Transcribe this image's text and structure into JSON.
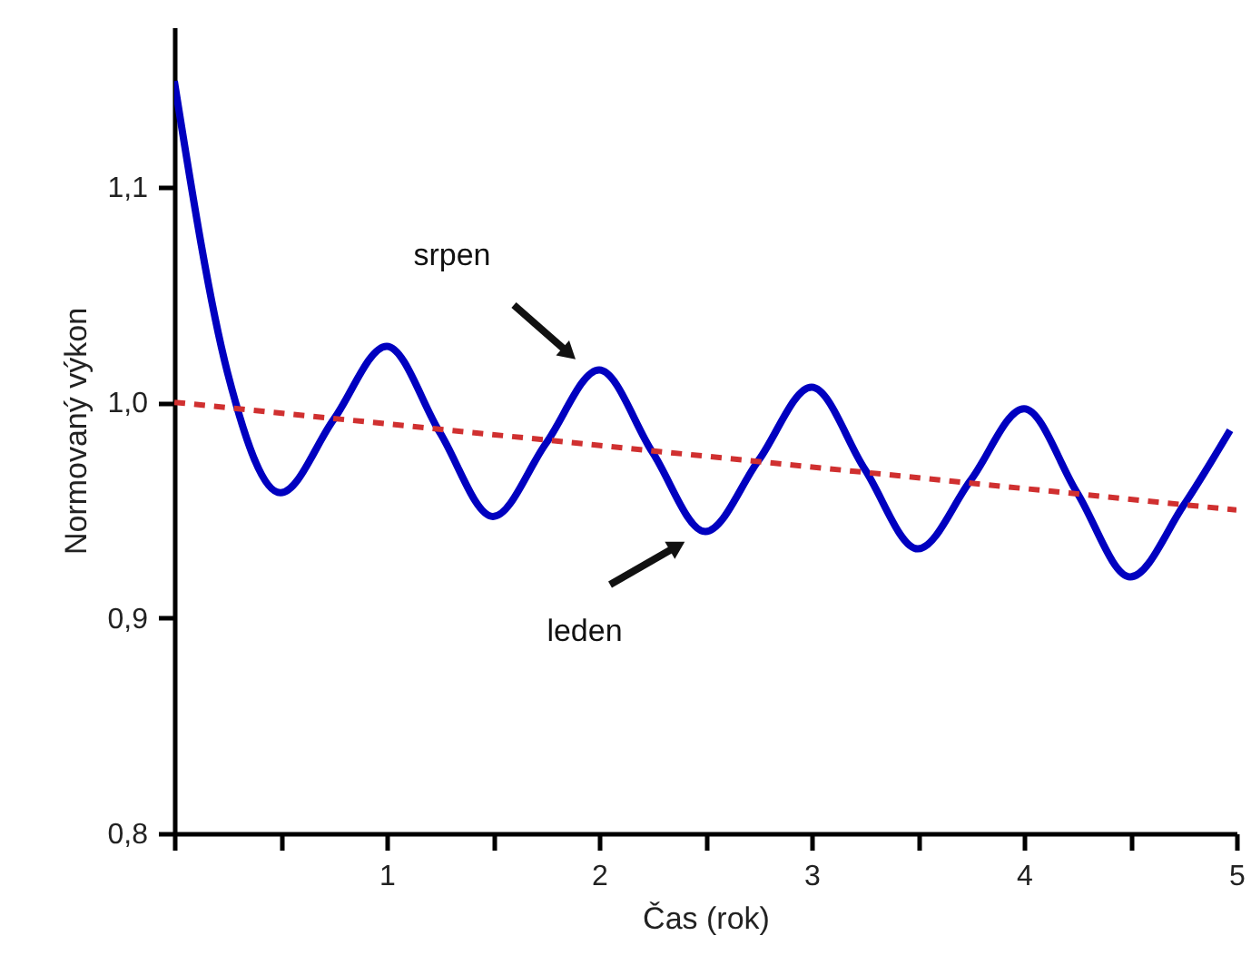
{
  "chart_data": {
    "type": "line",
    "xlabel": "Čas (rok)",
    "ylabel": "Normovaný výkon",
    "xlim": [
      0,
      5
    ],
    "ylim": [
      0.8,
      1.174
    ],
    "xticks": [
      {
        "value": 0,
        "label": null
      },
      {
        "value": 0.5,
        "label": null
      },
      1,
      {
        "value": 1.5,
        "label": null
      },
      2,
      {
        "value": 2.5,
        "label": null
      },
      3,
      {
        "value": 3.5,
        "label": null
      },
      4,
      {
        "value": 4.5,
        "label": null
      },
      5
    ],
    "yticks": [
      {
        "value": 0.8,
        "label": "0,8"
      },
      {
        "value": 0.9,
        "label": "0,9"
      },
      {
        "value": 1.0,
        "label": "1,0"
      },
      {
        "value": 1.1,
        "label": "1,1"
      }
    ],
    "grid": false,
    "series": [
      {
        "color": "#0000c0",
        "line_style": "solid",
        "x": [
          0,
          0.25,
          0.5,
          0.75,
          1,
          1.25,
          1.5,
          1.75,
          2,
          2.25,
          2.5,
          2.75,
          3,
          3.25,
          3.5,
          3.75,
          4,
          4.25,
          4.5,
          4.75,
          4.97
        ],
        "values": [
          1.149,
          1.014,
          0.958,
          0.992,
          1.026,
          0.986,
          0.947,
          0.981,
          1.015,
          0.977,
          0.94,
          0.973,
          1.007,
          0.969,
          0.932,
          0.964,
          0.997,
          0.958,
          0.919,
          0.952,
          0.987
        ]
      },
      {
        "color": "#d03030",
        "line_style": "dashed",
        "x": [
          0,
          5
        ],
        "values": [
          1.0,
          0.95
        ]
      }
    ],
    "annotations": [
      "srpen",
      "leden"
    ]
  }
}
